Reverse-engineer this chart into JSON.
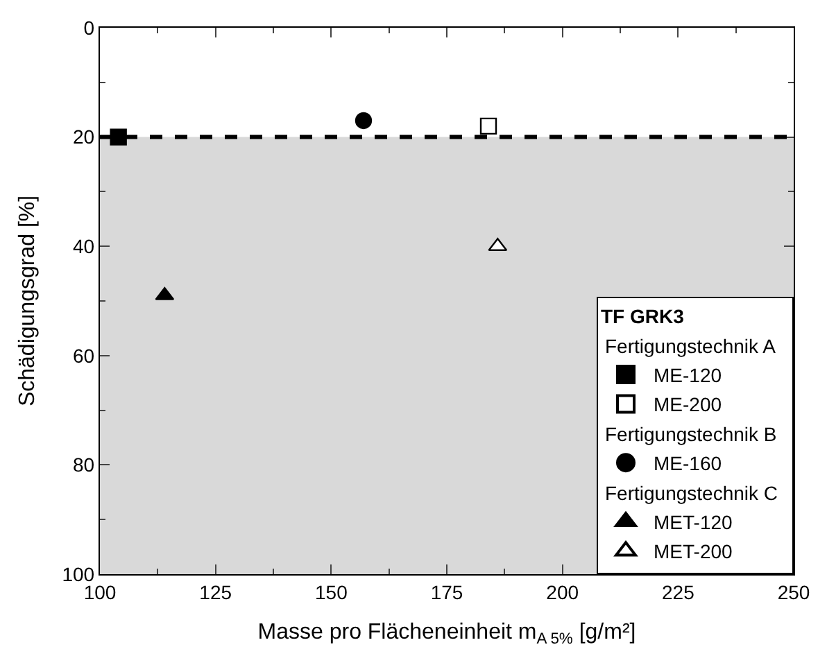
{
  "chart_data": {
    "type": "scatter",
    "xlabel": "Masse pro Flächeneinheit m$_{A 5%}$ [g/m²]",
    "ylabel": "Schädigungsgrad [%]",
    "legend_title": "TF GRK3",
    "annotations": [
      "Fertigungstechnik A",
      "Fertigungstechnik B",
      "Fertigungstechnik C"
    ],
    "series": [
      {
        "name": "ME-120",
        "color": "#000000",
        "marker": "square",
        "x": [
          104
        ],
        "values": [
          20
        ]
      },
      {
        "name": "ME-200",
        "color": "#ffffff",
        "marker": "square",
        "x": [
          184
        ],
        "values": [
          18
        ]
      },
      {
        "name": "ME-160",
        "color": "#000000",
        "marker": "circle",
        "x": [
          157
        ],
        "values": [
          17
        ]
      },
      {
        "name": "MET-120",
        "color": "#000000",
        "marker": "triangle",
        "x": [
          114
        ],
        "values": [
          49
        ]
      },
      {
        "name": "MET-200",
        "color": "#ffffff",
        "marker": "triangle",
        "x": [
          186
        ],
        "values": [
          40
        ]
      }
    ],
    "xlim": [
      100,
      250
    ],
    "xticks": [
      100,
      125,
      150,
      175,
      200,
      225,
      250
    ],
    "ylim": [
      100,
      0
    ],
    "yticks": [
      0,
      20,
      40,
      60,
      80,
      100
    ],
    "bands": [
      {
        "axis": "y",
        "from": 20,
        "to": 100,
        "color": "#d9d9d9"
      }
    ],
    "ref_lines": [
      {
        "axis": "y",
        "value": 20,
        "color": "#000000",
        "line_style": "dashed"
      }
    ],
    "grid": false,
    "legend": "bottom right"
  }
}
